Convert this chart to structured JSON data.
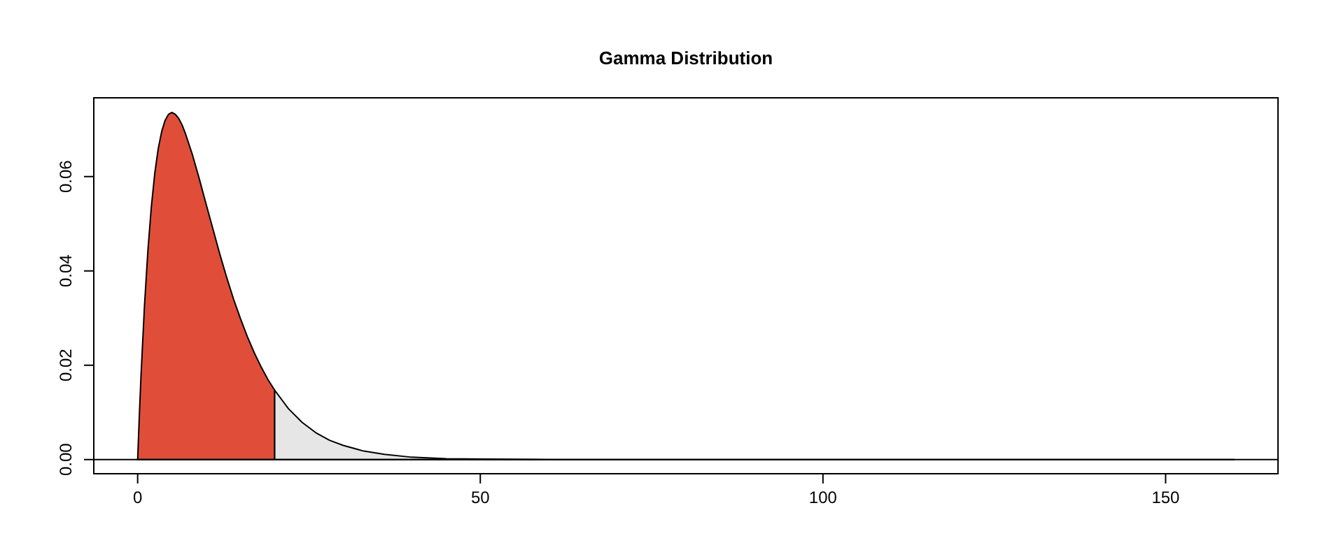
{
  "chart_data": {
    "type": "area",
    "title": "Gamma Distribution",
    "xlim": [
      -6.4,
      166.4
    ],
    "xticks": [
      0,
      50,
      100,
      150
    ],
    "ylim": [
      -0.003,
      0.0767
    ],
    "yticks": [
      {
        "value": 0,
        "label": "0.00"
      },
      {
        "value": 0.02,
        "label": "0.02"
      },
      {
        "value": 0.04,
        "label": "0.04"
      },
      {
        "value": 0.06,
        "label": "0.06"
      }
    ],
    "grid": false,
    "ref_lines": [
      {
        "axis": "y",
        "value": 0,
        "color": "#000000"
      }
    ],
    "series": [
      {
        "color": "#e04e39",
        "x": [
          0,
          0.25,
          0.5,
          1,
          1.5,
          2,
          2.5,
          3,
          3.5,
          4,
          4.5,
          5,
          5.5,
          6,
          6.5,
          7,
          8,
          9,
          10,
          11,
          12,
          13,
          14,
          15,
          16,
          17,
          18,
          19,
          20
        ],
        "values": [
          0,
          0.0095,
          0.0181,
          0.0327,
          0.0444,
          0.0536,
          0.0607,
          0.0659,
          0.0695,
          0.0719,
          0.0732,
          0.0736,
          0.0732,
          0.0723,
          0.0709,
          0.069,
          0.0646,
          0.0595,
          0.0541,
          0.0488,
          0.0435,
          0.0386,
          0.034,
          0.0299,
          0.0261,
          0.0227,
          0.0197,
          0.017,
          0.0147
        ]
      },
      {
        "color": "#e6e6e6",
        "x": [
          20,
          22,
          24,
          26,
          28,
          30,
          33,
          36,
          40,
          45,
          50,
          60,
          80,
          100,
          120,
          140,
          160
        ],
        "values": [
          0.0147,
          0.0108,
          0.0079,
          0.0057,
          0.0041,
          0.003,
          0.0018,
          0.0011,
          0.0005,
          0.0002,
          0.0001,
          0,
          0,
          0,
          0,
          0,
          0
        ]
      }
    ]
  }
}
